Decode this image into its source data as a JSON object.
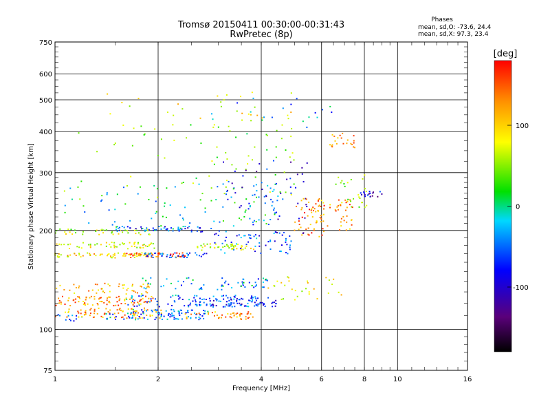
{
  "chart_data": {
    "type": "scatter",
    "title_line1": "Tromsø 20150411 00:30:00-00:31:43",
    "title_line2": "RwPretec (8p)",
    "xlabel": "Frequency [MHz]",
    "ylabel": "Stationary phase Virtual Height [km]",
    "x_scale": "log",
    "y_scale": "log",
    "xlim": [
      1,
      16
    ],
    "ylim": [
      75,
      750
    ],
    "x_ticks": [
      1,
      2,
      4,
      6,
      8,
      10,
      16
    ],
    "y_ticks": [
      75,
      100,
      200,
      300,
      400,
      500,
      600,
      750
    ],
    "grid": true,
    "phases": {
      "title": "Phases",
      "line_o": "mean, sd,O: -73.6, 24.4",
      "line_x": "mean, sd,X:  97.3, 23.4"
    },
    "colorbar": {
      "label": "[deg]",
      "ticks": [
        100,
        0,
        -100
      ],
      "range": [
        -180,
        180
      ],
      "colormap": "rainbow: black-purple-blue-cyan-green-yellow-orange-red"
    },
    "series": [
      {
        "f": 1.02,
        "h": 108,
        "phase": -60,
        "n": 18,
        "df": 0.18,
        "dh": 3
      },
      {
        "f": 1.5,
        "h": 112,
        "phase": 120,
        "n": 90,
        "df": 0.55,
        "dh": 4
      },
      {
        "f": 1.45,
        "h": 122,
        "phase": 130,
        "n": 90,
        "df": 0.5,
        "dh": 4
      },
      {
        "f": 1.4,
        "h": 133,
        "phase": 110,
        "n": 50,
        "df": 0.5,
        "dh": 5
      },
      {
        "f": 2.1,
        "h": 111,
        "phase": -50,
        "n": 100,
        "df": 0.7,
        "dh": 4
      },
      {
        "f": 2.8,
        "h": 122,
        "phase": -55,
        "n": 110,
        "df": 1.2,
        "dh": 5
      },
      {
        "f": 3.1,
        "h": 110,
        "phase": 130,
        "n": 45,
        "df": 0.7,
        "dh": 3
      },
      {
        "f": 3.6,
        "h": 121,
        "phase": -80,
        "n": 50,
        "df": 0.9,
        "dh": 4
      },
      {
        "f": 3.0,
        "h": 138,
        "phase": -40,
        "n": 60,
        "df": 1.2,
        "dh": 6
      },
      {
        "f": 1.45,
        "h": 168,
        "phase": 95,
        "n": 80,
        "df": 0.55,
        "dh": 3
      },
      {
        "f": 1.45,
        "h": 180,
        "phase": 70,
        "n": 60,
        "df": 0.5,
        "dh": 4
      },
      {
        "f": 1.45,
        "h": 198,
        "phase": 60,
        "n": 40,
        "df": 0.45,
        "dh": 4
      },
      {
        "f": 2.0,
        "h": 168,
        "phase": 150,
        "n": 40,
        "df": 0.4,
        "dh": 3
      },
      {
        "f": 2.3,
        "h": 168,
        "phase": -70,
        "n": 40,
        "df": 0.5,
        "dh": 3
      },
      {
        "f": 2.1,
        "h": 202,
        "phase": -70,
        "n": 50,
        "df": 0.6,
        "dh": 4
      },
      {
        "f": 3.2,
        "h": 178,
        "phase": 70,
        "n": 45,
        "df": 0.6,
        "dh": 4
      },
      {
        "f": 3.9,
        "h": 185,
        "phase": -60,
        "n": 60,
        "df": 1.0,
        "dh": 15
      },
      {
        "f": 2.7,
        "h": 240,
        "phase": -20,
        "n": 110,
        "df": 1.8,
        "dh": 40
      },
      {
        "f": 2.8,
        "h": 330,
        "phase": 40,
        "n": 90,
        "df": 2.2,
        "dh": 90
      },
      {
        "f": 4.3,
        "h": 260,
        "phase": -90,
        "n": 50,
        "df": 1.2,
        "dh": 70
      },
      {
        "f": 5.6,
        "h": 220,
        "phase": 140,
        "n": 40,
        "df": 0.6,
        "dh": 30
      },
      {
        "f": 6.5,
        "h": 225,
        "phase": 130,
        "n": 55,
        "df": 0.9,
        "dh": 25
      },
      {
        "f": 6.9,
        "h": 375,
        "phase": 140,
        "n": 22,
        "df": 0.6,
        "dh": 20
      },
      {
        "f": 7.4,
        "h": 265,
        "phase": 40,
        "n": 25,
        "df": 0.8,
        "dh": 30
      },
      {
        "f": 8.4,
        "h": 258,
        "phase": -100,
        "n": 18,
        "df": 0.6,
        "dh": 5
      },
      {
        "f": 5.5,
        "h": 135,
        "phase": 80,
        "n": 30,
        "df": 1.5,
        "dh": 12
      },
      {
        "f": 3.3,
        "h": 480,
        "phase": 80,
        "n": 30,
        "df": 2.0,
        "dh": 50
      },
      {
        "f": 4.5,
        "h": 450,
        "phase": -40,
        "n": 20,
        "df": 2.0,
        "dh": 60
      }
    ]
  }
}
